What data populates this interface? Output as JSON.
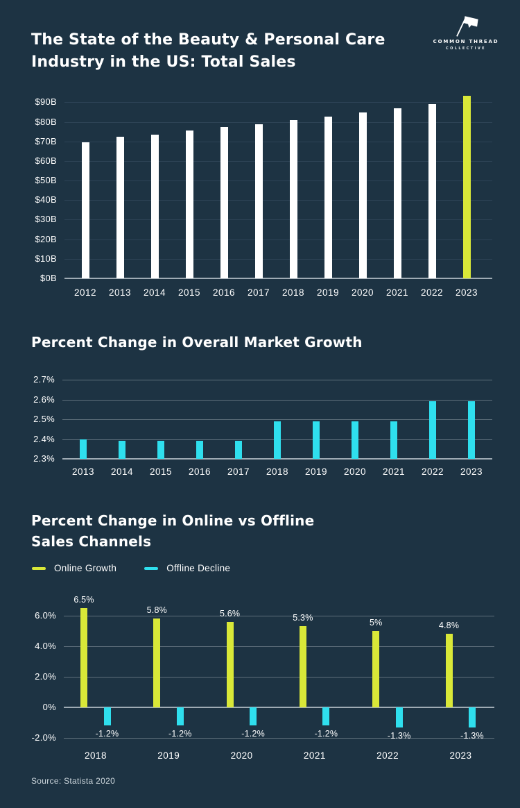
{
  "page": {
    "bg_color": "#1d3343",
    "accent_yellow": "#d9e838",
    "accent_cyan": "#2fdfee",
    "source_note": "Source: Statista 2020"
  },
  "logo": {
    "name": "Common Thread Collective",
    "line1": "COMMON THREAD",
    "line2": "COLLECTIVE"
  },
  "chart_data": [
    {
      "type": "bar",
      "title": "The State of the Beauty & Personal Care\nIndustry in the US: Total Sales",
      "categories": [
        "2012",
        "2013",
        "2014",
        "2015",
        "2016",
        "2017",
        "2018",
        "2019",
        "2020",
        "2021",
        "2022",
        "2023"
      ],
      "values": [
        69.7,
        72.3,
        73.5,
        75.5,
        77.3,
        78.9,
        80.9,
        82.7,
        84.9,
        86.8,
        89.0,
        93.4
      ],
      "unit": "billion USD",
      "bar_color": "#ffffff",
      "highlight_index": 11,
      "highlight_color": "#d9e838",
      "ylim": [
        0,
        94.4
      ],
      "grid": "dark",
      "yticks": [
        {
          "value": 0,
          "label": "$0B",
          "axis": true
        },
        {
          "value": 10,
          "label": "$10B"
        },
        {
          "value": 20,
          "label": "$20B"
        },
        {
          "value": 30,
          "label": "$30B"
        },
        {
          "value": 40,
          "label": "$40B"
        },
        {
          "value": 50,
          "label": "$50B"
        },
        {
          "value": 60,
          "label": "$60B"
        },
        {
          "value": 70,
          "label": "$70B"
        },
        {
          "value": 80,
          "label": "$80B"
        },
        {
          "value": 90,
          "label": "$90B"
        }
      ]
    },
    {
      "type": "bar",
      "title": "Percent Change in Overall Market Growth",
      "categories": [
        "2013",
        "2014",
        "2015",
        "2016",
        "2017",
        "2018",
        "2019",
        "2020",
        "2021",
        "2022",
        "2023"
      ],
      "values": [
        2.4,
        2.39,
        2.39,
        2.39,
        2.39,
        2.49,
        2.49,
        2.49,
        2.49,
        2.59,
        2.59
      ],
      "unit": "%",
      "bar_color": "#2fdfee",
      "ylim": [
        2.3,
        2.725
      ],
      "grid": "light",
      "yticks": [
        {
          "value": 2.3,
          "label": "2.3%",
          "axis": true
        },
        {
          "value": 2.4,
          "label": "2.4%"
        },
        {
          "value": 2.5,
          "label": "2.5%"
        },
        {
          "value": 2.6,
          "label": "2.6%"
        },
        {
          "value": 2.7,
          "label": "2.7%"
        }
      ]
    },
    {
      "type": "grouped-bar",
      "title": "Percent Change in Online vs Offline\nSales Channels",
      "categories": [
        "2018",
        "2019",
        "2020",
        "2021",
        "2022",
        "2023"
      ],
      "series": [
        {
          "name": "Online Growth",
          "color": "#d9e838",
          "values": [
            6.5,
            5.8,
            5.6,
            5.3,
            5,
            4.8
          ],
          "labels": [
            "6.5%",
            "5.8%",
            "5.6%",
            "5.3%",
            "5%",
            "4.8%"
          ]
        },
        {
          "name": "Offline Decline",
          "color": "#2fdfee",
          "values": [
            -1.2,
            -1.2,
            -1.2,
            -1.2,
            -1.3,
            -1.3
          ],
          "labels": [
            "-1.2%",
            "-1.2%",
            "-1.2%",
            "-1.2%",
            "-1.3%",
            "-1.3%"
          ]
        }
      ],
      "unit": "%",
      "ylim": [
        -2.32,
        6.77
      ],
      "grid": "light",
      "legend_position": "top-left",
      "yticks": [
        {
          "value": 6,
          "label": "6.0%"
        },
        {
          "value": 4,
          "label": "4.0%"
        },
        {
          "value": 2,
          "label": "2.0%"
        },
        {
          "value": 0,
          "label": "0%",
          "axis": true
        },
        {
          "value": -2,
          "label": "-2.0%"
        }
      ]
    }
  ]
}
